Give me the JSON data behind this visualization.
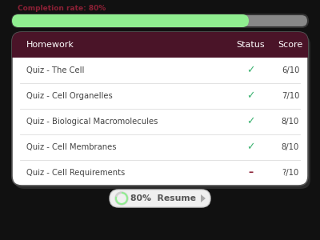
{
  "bg_color": "#111111",
  "progress_label": "Completion rate: 80%",
  "progress_label_color": "#8B2035",
  "progress_value": 0.8,
  "progress_bar_color": "#90EE90",
  "progress_bar_bg": "#888888",
  "progress_bar_border": "#333333",
  "table_header_bg": "#4a1428",
  "table_header_text": "#ffffff",
  "table_body_bg": "#ffffff",
  "table_row_text": "#444444",
  "headers": [
    "Homework",
    "Status",
    "Score"
  ],
  "rows": [
    [
      "Quiz - The Cell",
      "✓",
      "6/10"
    ],
    [
      "Quiz - Cell Organelles",
      "✓",
      "7/10"
    ],
    [
      "Quiz - Biological Macromolecules",
      "✓",
      "8/10"
    ],
    [
      "Quiz - Cell Membranes",
      "✓",
      "8/10"
    ],
    [
      "Quiz - Cell Requirements",
      "–",
      "?/10"
    ]
  ],
  "check_color": "#3cb371",
  "dash_color": "#8B2035",
  "footer_text": "80%  Resume",
  "footer_circle_color": "#90EE90",
  "footer_play_color": "#aaaaaa",
  "card_bg": "#ffffff",
  "card_edge": "#555555"
}
